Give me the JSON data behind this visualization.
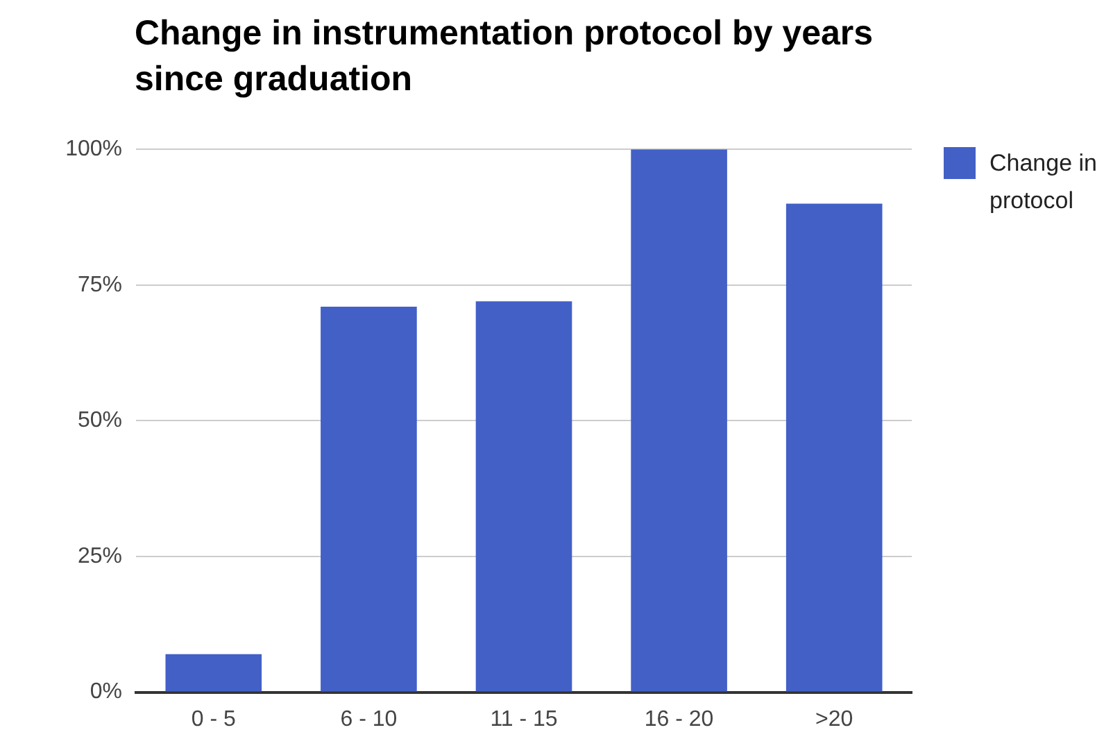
{
  "chart_data": {
    "type": "bar",
    "title": "Change in instrumentation protocol by years since graduation",
    "categories": [
      "0 - 5",
      "6 - 10",
      "11 - 15",
      "16 - 20",
      ">20"
    ],
    "series": [
      {
        "name": "Change in protocol",
        "color": "#4360c7",
        "values": [
          7,
          71,
          72,
          100,
          90
        ]
      }
    ],
    "ylim": [
      0,
      100
    ],
    "yticks": [
      {
        "value": 0,
        "label": "0%"
      },
      {
        "value": 25,
        "label": "25%"
      },
      {
        "value": 50,
        "label": "50%"
      },
      {
        "value": 75,
        "label": "75%"
      },
      {
        "value": 100,
        "label": "100%"
      }
    ],
    "grid": "y",
    "legend": "right"
  }
}
